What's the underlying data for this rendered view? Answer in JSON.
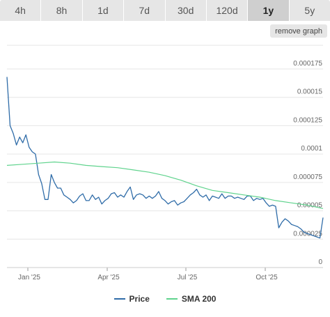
{
  "tabs": [
    {
      "label": "4h",
      "active": false
    },
    {
      "label": "8h",
      "active": false
    },
    {
      "label": "1d",
      "active": false
    },
    {
      "label": "7d",
      "active": false
    },
    {
      "label": "30d",
      "active": false
    },
    {
      "label": "120d",
      "active": false
    },
    {
      "label": "1y",
      "active": true
    },
    {
      "label": "5y",
      "active": false
    }
  ],
  "remove_graph_label": "remove graph",
  "legend": [
    {
      "label": "Price",
      "color": "#2f6ca8"
    },
    {
      "label": "SMA 200",
      "color": "#5fd38d"
    }
  ],
  "chart_data": {
    "type": "line",
    "ylim": [
      0,
      0.000175
    ],
    "y_ticks": [
      "0",
      "0.000025",
      "0.00005",
      "0.000075",
      "0.0001",
      "0.000125",
      "0.00015",
      "0.000175"
    ],
    "x_ticks": [
      "Jan '25",
      "Apr '25",
      "Jul '25",
      "Oct '25"
    ],
    "grid": true,
    "legend_position": "bottom",
    "series": [
      {
        "name": "Price",
        "color": "#2f6ca8",
        "x": [
          0,
          1,
          2,
          3,
          4,
          5,
          6,
          7,
          8,
          9,
          10,
          11,
          12,
          13,
          14,
          15,
          16,
          17,
          18,
          19,
          20,
          21,
          22,
          23,
          24,
          25,
          26,
          27,
          28,
          29,
          30,
          31,
          32,
          33,
          34,
          35,
          36,
          37,
          38,
          39,
          40,
          41,
          42,
          43,
          44,
          45,
          46,
          47,
          48,
          49,
          50,
          51,
          52,
          53,
          54,
          55,
          56,
          57,
          58,
          59,
          60,
          61,
          62,
          63,
          64,
          65,
          66,
          67,
          68,
          69,
          70,
          71,
          72,
          73,
          74,
          75,
          76,
          77,
          78,
          79,
          80,
          81,
          82,
          83,
          84,
          85,
          86,
          87,
          88,
          89,
          90,
          91,
          92,
          93,
          94,
          95,
          96,
          97,
          98,
          99,
          100
        ],
        "values": [
          0.000168,
          0.000125,
          0.000118,
          0.000108,
          0.000115,
          0.00011,
          0.000117,
          0.000106,
          0.000102,
          0.0001,
          8.2e-05,
          7.4e-05,
          6e-05,
          6e-05,
          8.2e-05,
          7.5e-05,
          7e-05,
          7e-05,
          6.4e-05,
          6.2e-05,
          6e-05,
          5.7e-05,
          5.9e-05,
          6.3e-05,
          6.5e-05,
          5.9e-05,
          5.9e-05,
          6.4e-05,
          6e-05,
          6.2e-05,
          5.6e-05,
          5.9e-05,
          6.1e-05,
          6.5e-05,
          6.6e-05,
          6.2e-05,
          6.4e-05,
          6.2e-05,
          6.7e-05,
          7.1e-05,
          6e-05,
          6.4e-05,
          6.5e-05,
          6.4e-05,
          6.1e-05,
          6.3e-05,
          6.1e-05,
          6.3e-05,
          6.7e-05,
          6.1e-05,
          5.9e-05,
          5.6e-05,
          5.8e-05,
          5.9e-05,
          5.5e-05,
          5.7e-05,
          5.8e-05,
          6.1e-05,
          6.4e-05,
          6.6e-05,
          6.9e-05,
          6.4e-05,
          6.2e-05,
          6.4e-05,
          5.9e-05,
          6.3e-05,
          6.2e-05,
          6.1e-05,
          6.5e-05,
          6.1e-05,
          6.3e-05,
          6.3e-05,
          6.1e-05,
          6.2e-05,
          6.1e-05,
          6e-05,
          6.3e-05,
          6.3e-05,
          5.9e-05,
          6.1e-05,
          6e-05,
          6.1e-05,
          5.7e-05,
          5.4e-05,
          5.5e-05,
          5.4e-05,
          3.5e-05,
          4e-05,
          4.3e-05,
          4.1e-05,
          3.8e-05,
          3.7e-05,
          3.6e-05,
          3.4e-05,
          3.1e-05,
          3e-05,
          2.9e-05,
          2.8e-05,
          2.7e-05,
          2.6e-05,
          4.4e-05
        ]
      },
      {
        "name": "SMA 200",
        "color": "#5fd38d",
        "x": [
          0,
          5,
          10,
          15,
          20,
          25,
          30,
          35,
          40,
          45,
          50,
          55,
          60,
          65,
          70,
          75,
          80,
          85,
          90,
          95,
          100
        ],
        "values": [
          9e-05,
          9.1e-05,
          9.2e-05,
          9.3e-05,
          9.2e-05,
          9e-05,
          8.9e-05,
          8.8e-05,
          8.6e-05,
          8.4e-05,
          8.1e-05,
          7.7e-05,
          7.2e-05,
          6.8e-05,
          6.6e-05,
          6.4e-05,
          6.2e-05,
          5.9e-05,
          5.7e-05,
          5.5e-05,
          5.2e-05
        ]
      }
    ]
  }
}
